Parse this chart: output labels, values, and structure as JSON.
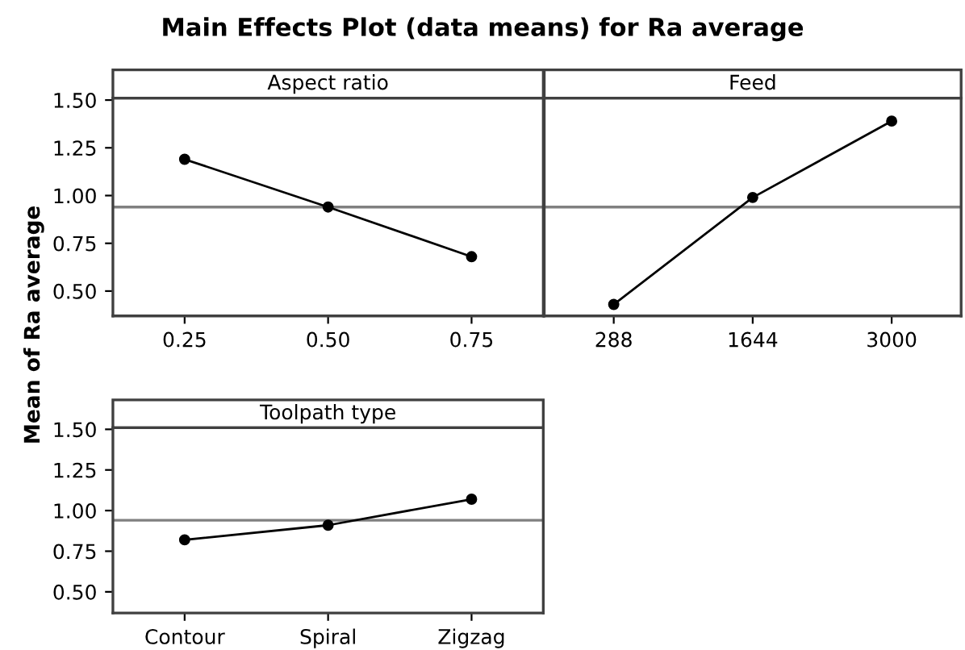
{
  "chart_data": [
    {
      "type": "line",
      "title": "Aspect ratio",
      "ylabel": "Mean of Ra average",
      "annotations": [
        "Main Effects Plot (data means) for Ra average"
      ],
      "categories": [
        "0.25",
        "0.50",
        "0.75"
      ],
      "series": [
        {
          "color": "#000000",
          "values": [
            1.19,
            0.94,
            0.68
          ]
        }
      ],
      "ylim": [
        0.37,
        1.51
      ],
      "yticks": [
        {
          "value": 0.5,
          "label": "0.50"
        },
        {
          "value": 0.75,
          "label": "0.75"
        },
        {
          "value": 1.0,
          "label": "1.00"
        },
        {
          "value": 1.25,
          "label": "1.25"
        },
        {
          "value": 1.5,
          "label": "1.50"
        }
      ],
      "ref_lines": [
        {
          "axis": "y",
          "value": 0.94,
          "color": "#808080"
        }
      ],
      "marker": "circle",
      "grid": false,
      "legend": false
    },
    {
      "type": "line",
      "title": "Feed",
      "categories": [
        "288",
        "1644",
        "3000"
      ],
      "series": [
        {
          "color": "#000000",
          "values": [
            0.43,
            0.99,
            1.39
          ]
        }
      ],
      "ylim": [
        0.37,
        1.51
      ],
      "tick_labels": "x",
      "ref_lines": [
        {
          "axis": "y",
          "value": 0.94,
          "color": "#808080"
        }
      ],
      "marker": "circle",
      "grid": false,
      "legend": false
    },
    {
      "type": "line",
      "title": "Toolpath type",
      "categories": [
        "Contour",
        "Spiral",
        "Zigzag"
      ],
      "series": [
        {
          "color": "#000000",
          "values": [
            0.82,
            0.91,
            1.07
          ]
        }
      ],
      "ylim": [
        0.37,
        1.51
      ],
      "yticks": [
        {
          "value": 0.5,
          "label": "0.50"
        },
        {
          "value": 0.75,
          "label": "0.75"
        },
        {
          "value": 1.0,
          "label": "1.00"
        },
        {
          "value": 1.25,
          "label": "1.25"
        },
        {
          "value": 1.5,
          "label": "1.50"
        }
      ],
      "ref_lines": [
        {
          "axis": "y",
          "value": 0.94,
          "color": "#808080"
        }
      ],
      "marker": "circle",
      "grid": false,
      "legend": false
    }
  ]
}
